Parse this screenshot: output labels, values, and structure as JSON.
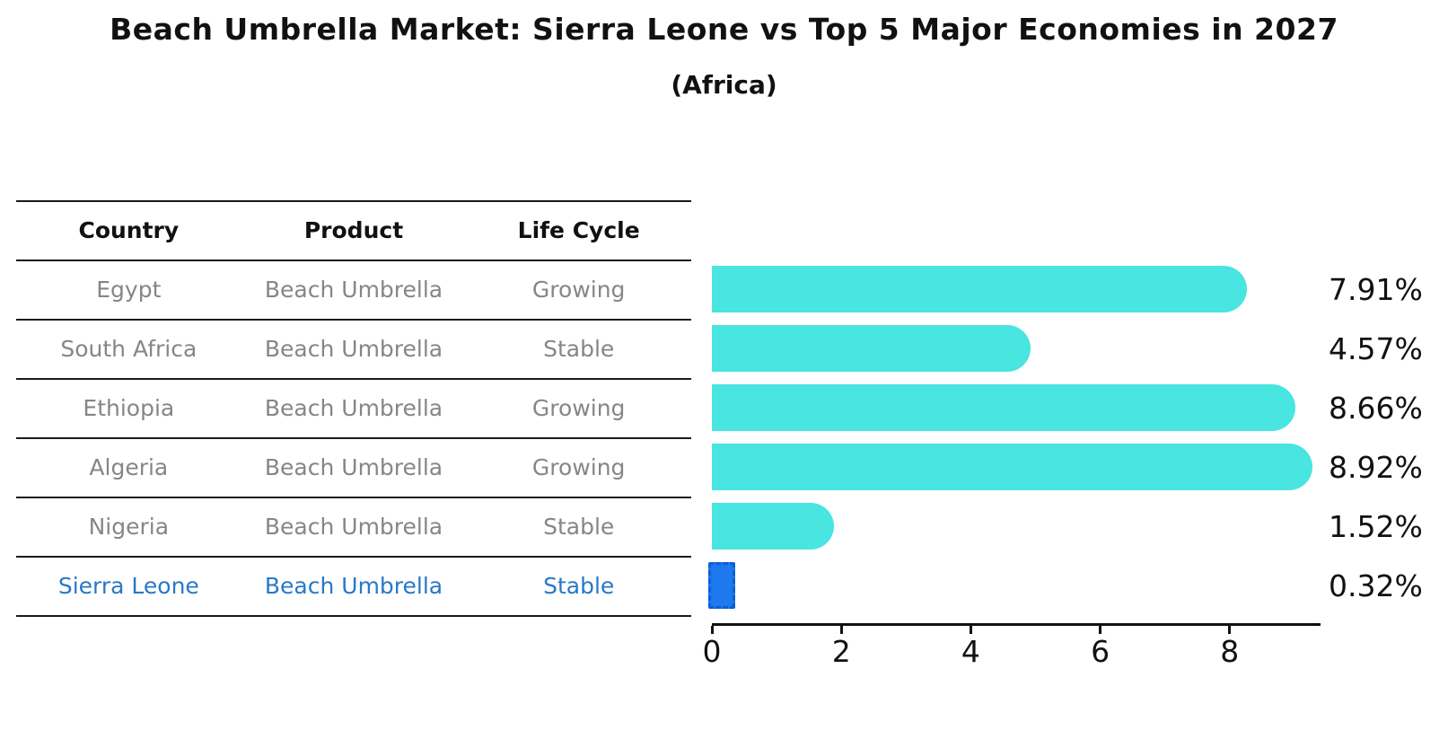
{
  "title": "Beach Umbrella Market: Sierra Leone vs Top 5 Major Economies in 2027",
  "subtitle": "(Africa)",
  "table": {
    "headers": [
      "Country",
      "Product",
      "Life Cycle"
    ],
    "rows": [
      {
        "country": "Egypt",
        "product": "Beach Umbrella",
        "life_cycle": "Growing"
      },
      {
        "country": "South Africa",
        "product": "Beach Umbrella",
        "life_cycle": "Stable"
      },
      {
        "country": "Ethiopia",
        "product": "Beach Umbrella",
        "life_cycle": "Growing"
      },
      {
        "country": "Algeria",
        "product": "Beach Umbrella",
        "life_cycle": "Growing"
      },
      {
        "country": "Nigeria",
        "product": "Beach Umbrella",
        "life_cycle": "Stable"
      },
      {
        "country": "Sierra Leone",
        "product": "Beach Umbrella",
        "life_cycle": "Stable"
      }
    ]
  },
  "chart_data": {
    "type": "bar",
    "orientation": "horizontal",
    "title": "Beach Umbrella Market: Sierra Leone vs Top 5 Major Economies in 2027 (Africa)",
    "categories": [
      "Egypt",
      "South Africa",
      "Ethiopia",
      "Algeria",
      "Nigeria",
      "Sierra Leone"
    ],
    "values": [
      7.91,
      4.57,
      8.66,
      8.92,
      1.52,
      0.32
    ],
    "value_labels": [
      "7.91%",
      "4.57%",
      "8.66%",
      "8.92%",
      "1.52%",
      "0.32%"
    ],
    "x_ticks": [
      0,
      2,
      4,
      6,
      8
    ],
    "xlim": [
      0,
      9.4
    ],
    "grid": false,
    "legend": null,
    "bar_color": "#48E5E1",
    "highlight_bar_color": "#1E78EE",
    "highlight_index": 5
  },
  "colors": {
    "row_text": "#868686",
    "highlight_text": "#2878C8",
    "header_text": "#111111",
    "value_label": "#111111",
    "axis": "#111111"
  }
}
